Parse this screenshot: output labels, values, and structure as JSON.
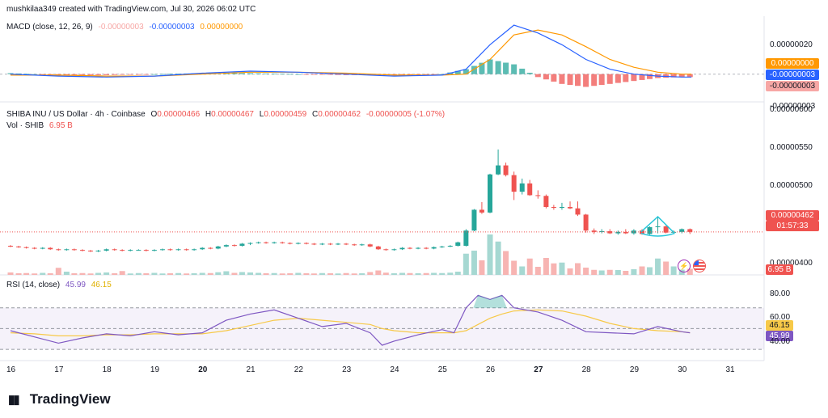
{
  "header": {
    "credit": "mushkilaa349 created with TradingView.com, Jul 30, 2026 06:02 UTC"
  },
  "macd": {
    "label": "MACD (close, 12, 26, 9)",
    "hist_value": "-0.00000003",
    "macd_value": "-0.00000003",
    "signal_value": "0.00000000",
    "axis_labels": [
      "0.00000020",
      "-0.00000003"
    ],
    "tag_signal": "0.00000000",
    "tag_macd": "-0.00000003",
    "tag_hist": "-0.00000003",
    "colors": {
      "macd": "#2962ff",
      "signal": "#ff9800",
      "hist_up": "#26a69a",
      "hist_down": "#ef5350"
    }
  },
  "price": {
    "symbol": "SHIBA INU / US Dollar · 4h · Coinbase",
    "o_label": "O",
    "o_value": "0.00000466",
    "h_label": "H",
    "h_value": "0.00000467",
    "l_label": "L",
    "l_value": "0.00000459",
    "c_label": "C",
    "c_value": "0.00000462",
    "change": "-0.00000005 (-1.07%)",
    "vol_label": "Vol · SHIB",
    "vol_value": "6.95 B",
    "axis_labels": [
      "0.00000600",
      "0.00000550",
      "0.00000500",
      "0.00000400"
    ],
    "last_price": "0.00000462",
    "countdown": "01:57:33",
    "vol_tag": "6.95 B",
    "colors": {
      "up": "#26a69a",
      "down": "#ef5350"
    }
  },
  "rsi": {
    "label": "RSI (14, close)",
    "rsi_value": "45.99",
    "ma_value": "46.15",
    "axis_labels": [
      "80.00",
      "60.00",
      "40.00"
    ],
    "tag_ma": "46.15",
    "tag_rsi": "45.99",
    "colors": {
      "rsi": "#7e57c2",
      "ma": "#f7c948"
    }
  },
  "x_axis": {
    "dates": [
      "16",
      "17",
      "18",
      "19",
      "20",
      "21",
      "22",
      "23",
      "24",
      "25",
      "26",
      "27",
      "28",
      "29",
      "30",
      "31"
    ]
  },
  "brand": {
    "name": "TradingView"
  },
  "chart_data": {
    "type": "candlestick",
    "interval": "4h",
    "ylim": [
      4e-06,
      6.1e-06
    ],
    "candles": [
      [
        16.0,
        4.42,
        4.43,
        4.4,
        4.41
      ],
      [
        16.17,
        4.41,
        4.42,
        4.39,
        4.4
      ],
      [
        16.33,
        4.4,
        4.41,
        4.38,
        4.39
      ],
      [
        16.5,
        4.39,
        4.4,
        4.37,
        4.38
      ],
      [
        16.67,
        4.38,
        4.4,
        4.37,
        4.39
      ],
      [
        16.83,
        4.39,
        4.4,
        4.36,
        4.37
      ],
      [
        17.0,
        4.37,
        4.38,
        4.35,
        4.36
      ],
      [
        17.17,
        4.36,
        4.38,
        4.35,
        4.37
      ],
      [
        17.33,
        4.37,
        4.38,
        4.35,
        4.36
      ],
      [
        17.5,
        4.36,
        4.37,
        4.34,
        4.35
      ],
      [
        17.67,
        4.35,
        4.36,
        4.33,
        4.34
      ],
      [
        17.83,
        4.34,
        4.36,
        4.33,
        4.35
      ],
      [
        18.0,
        4.35,
        4.38,
        4.34,
        4.37
      ],
      [
        18.17,
        4.37,
        4.38,
        4.35,
        4.36
      ],
      [
        18.33,
        4.36,
        4.37,
        4.34,
        4.35
      ],
      [
        18.5,
        4.35,
        4.37,
        4.34,
        4.36
      ],
      [
        18.67,
        4.36,
        4.37,
        4.35,
        4.36
      ],
      [
        18.83,
        4.36,
        4.37,
        4.34,
        4.35
      ],
      [
        19.0,
        4.35,
        4.37,
        4.34,
        4.36
      ],
      [
        19.17,
        4.36,
        4.38,
        4.35,
        4.37
      ],
      [
        19.33,
        4.37,
        4.38,
        4.35,
        4.36
      ],
      [
        19.5,
        4.36,
        4.38,
        4.35,
        4.37
      ],
      [
        19.67,
        4.37,
        4.38,
        4.35,
        4.36
      ],
      [
        19.83,
        4.36,
        4.38,
        4.35,
        4.37
      ],
      [
        20.0,
        4.37,
        4.4,
        4.36,
        4.39
      ],
      [
        20.17,
        4.39,
        4.4,
        4.37,
        4.38
      ],
      [
        20.33,
        4.38,
        4.42,
        4.37,
        4.41
      ],
      [
        20.5,
        4.41,
        4.44,
        4.4,
        4.43
      ],
      [
        20.67,
        4.43,
        4.44,
        4.41,
        4.42
      ],
      [
        20.83,
        4.42,
        4.46,
        4.41,
        4.45
      ],
      [
        21.0,
        4.45,
        4.47,
        4.43,
        4.46
      ],
      [
        21.17,
        4.46,
        4.48,
        4.45,
        4.47
      ],
      [
        21.33,
        4.47,
        4.48,
        4.45,
        4.46
      ],
      [
        21.5,
        4.46,
        4.48,
        4.45,
        4.47
      ],
      [
        21.67,
        4.47,
        4.48,
        4.45,
        4.46
      ],
      [
        21.83,
        4.46,
        4.47,
        4.44,
        4.45
      ],
      [
        22.0,
        4.45,
        4.47,
        4.44,
        4.46
      ],
      [
        22.17,
        4.46,
        4.47,
        4.44,
        4.45
      ],
      [
        22.33,
        4.45,
        4.46,
        4.43,
        4.44
      ],
      [
        22.5,
        4.44,
        4.46,
        4.43,
        4.45
      ],
      [
        22.67,
        4.45,
        4.46,
        4.43,
        4.44
      ],
      [
        22.83,
        4.44,
        4.46,
        4.43,
        4.45
      ],
      [
        23.0,
        4.45,
        4.46,
        4.43,
        4.44
      ],
      [
        23.17,
        4.44,
        4.45,
        4.42,
        4.43
      ],
      [
        23.33,
        4.43,
        4.45,
        4.42,
        4.44
      ],
      [
        23.5,
        4.44,
        4.45,
        4.4,
        4.41
      ],
      [
        23.67,
        4.41,
        4.42,
        4.36,
        4.37
      ],
      [
        23.83,
        4.37,
        4.38,
        4.35,
        4.36
      ],
      [
        24.0,
        4.36,
        4.38,
        4.35,
        4.37
      ],
      [
        24.17,
        4.37,
        4.4,
        4.36,
        4.39
      ],
      [
        24.33,
        4.39,
        4.4,
        4.37,
        4.38
      ],
      [
        24.5,
        4.38,
        4.4,
        4.37,
        4.39
      ],
      [
        24.67,
        4.39,
        4.4,
        4.37,
        4.38
      ],
      [
        24.83,
        4.38,
        4.41,
        4.37,
        4.4
      ],
      [
        25.0,
        4.4,
        4.42,
        4.39,
        4.41
      ],
      [
        25.17,
        4.41,
        4.43,
        4.4,
        4.42
      ],
      [
        25.33,
        4.42,
        4.48,
        4.41,
        4.47
      ],
      [
        25.5,
        4.42,
        4.66,
        4.41,
        4.64
      ],
      [
        25.67,
        4.64,
        4.95,
        4.63,
        4.94
      ],
      [
        25.83,
        4.94,
        5.05,
        4.88,
        4.9
      ],
      [
        26.0,
        4.9,
        5.46,
        4.89,
        5.45
      ],
      [
        26.17,
        5.45,
        5.81,
        5.44,
        5.58
      ],
      [
        26.33,
        5.58,
        5.62,
        5.42,
        5.44
      ],
      [
        26.5,
        5.44,
        5.49,
        5.08,
        5.2
      ],
      [
        26.67,
        5.2,
        5.39,
        5.16,
        5.32
      ],
      [
        26.83,
        5.32,
        5.37,
        5.14,
        5.15
      ],
      [
        27.0,
        5.15,
        5.22,
        5.1,
        5.14
      ],
      [
        27.17,
        5.14,
        5.16,
        4.96,
        4.98
      ],
      [
        27.33,
        4.98,
        5.01,
        4.94,
        4.97
      ],
      [
        27.5,
        4.97,
        5.04,
        4.94,
        4.98
      ],
      [
        27.67,
        4.98,
        5.06,
        4.95,
        4.96
      ],
      [
        27.83,
        4.96,
        5.06,
        4.85,
        4.87
      ],
      [
        28.0,
        4.87,
        4.88,
        4.61,
        4.64
      ],
      [
        28.17,
        4.64,
        4.67,
        4.59,
        4.62
      ],
      [
        28.33,
        4.62,
        4.66,
        4.6,
        4.63
      ],
      [
        28.5,
        4.63,
        4.66,
        4.59,
        4.6
      ],
      [
        28.67,
        4.6,
        4.64,
        4.58,
        4.62
      ],
      [
        28.83,
        4.62,
        4.66,
        4.59,
        4.6
      ],
      [
        29.0,
        4.6,
        4.66,
        4.58,
        4.64
      ],
      [
        29.17,
        4.64,
        4.66,
        4.58,
        4.59
      ],
      [
        29.33,
        4.59,
        4.7,
        4.58,
        4.69
      ],
      [
        29.5,
        4.69,
        4.84,
        4.6,
        4.7
      ],
      [
        29.67,
        4.7,
        4.71,
        4.6,
        4.61
      ],
      [
        29.83,
        4.61,
        4.64,
        4.59,
        4.62
      ],
      [
        30.0,
        4.62,
        4.67,
        4.6,
        4.66
      ],
      [
        30.17,
        4.66,
        4.67,
        4.59,
        4.62
      ]
    ],
    "volume": [
      1.2,
      0.8,
      0.9,
      0.7,
      1.0,
      0.8,
      3.5,
      1.6,
      0.8,
      0.9,
      0.7,
      1.0,
      1.2,
      0.8,
      1.9,
      0.7,
      0.9,
      0.8,
      1.0,
      0.7,
      0.8,
      0.9,
      0.7,
      0.8,
      1.0,
      0.9,
      1.3,
      1.8,
      1.0,
      1.4,
      1.2,
      1.0,
      0.8,
      0.9,
      0.7,
      0.8,
      1.0,
      0.8,
      0.7,
      0.9,
      0.8,
      0.7,
      0.9,
      0.7,
      0.8,
      1.4,
      2.2,
      1.1,
      0.8,
      1.0,
      0.9,
      0.8,
      0.9,
      1.0,
      0.9,
      1.1,
      1.6,
      10.5,
      12.0,
      7.2,
      20.0,
      16.5,
      11.8,
      7.0,
      4.2,
      8.1,
      4.0,
      8.4,
      5.7,
      6.1,
      3.2,
      5.8,
      3.6,
      2.5,
      2.2,
      2.5,
      2.4,
      2.0,
      2.8,
      4.2,
      3.8,
      8.1,
      6.6,
      4.2,
      2.6,
      3.0
    ],
    "macd_series": {
      "x": [
        16,
        17,
        18,
        19,
        20,
        21,
        22,
        23,
        24,
        25,
        25.5,
        26,
        26.5,
        27,
        27.5,
        28,
        28.5,
        29,
        29.5,
        30,
        30.2
      ],
      "macd": [
        0.0,
        -0.02,
        -0.03,
        -0.02,
        0.01,
        0.03,
        0.02,
        0.0,
        -0.02,
        -0.01,
        0.05,
        0.3,
        0.5,
        0.42,
        0.3,
        0.15,
        0.05,
        0.0,
        -0.02,
        -0.03,
        -0.03
      ],
      "signal": [
        -0.01,
        -0.01,
        -0.02,
        -0.02,
        0.0,
        0.02,
        0.02,
        0.01,
        -0.01,
        -0.01,
        0.0,
        0.15,
        0.4,
        0.45,
        0.4,
        0.28,
        0.15,
        0.07,
        0.02,
        0.0,
        0.0
      ]
    },
    "rsi_series": {
      "x": [
        16,
        16.5,
        17,
        17.5,
        18,
        18.5,
        19,
        19.5,
        20,
        20.5,
        21,
        21.5,
        22,
        22.5,
        23,
        23.5,
        23.75,
        24,
        24.5,
        25,
        25.25,
        25.5,
        25.75,
        26,
        26.25,
        26.5,
        27,
        27.5,
        28,
        28.5,
        29,
        29.5,
        30,
        30.17
      ],
      "rsi": [
        48,
        42,
        36,
        41,
        45,
        43,
        47,
        44,
        46,
        58,
        64,
        68,
        60,
        52,
        55,
        46,
        34,
        38,
        44,
        49,
        46,
        70,
        82,
        78,
        82,
        70,
        66,
        58,
        47,
        46,
        45,
        52,
        47,
        46
      ],
      "ma": [
        46,
        45,
        43,
        43,
        44,
        44,
        45,
        45,
        45,
        48,
        53,
        58,
        60,
        58,
        56,
        54,
        50,
        48,
        46,
        46,
        46,
        48,
        54,
        60,
        64,
        67,
        68,
        67,
        62,
        55,
        50,
        48,
        47,
        46
      ]
    },
    "rsi_bands": [
      70,
      50,
      30
    ],
    "xlabel": "",
    "ylabel": ""
  }
}
